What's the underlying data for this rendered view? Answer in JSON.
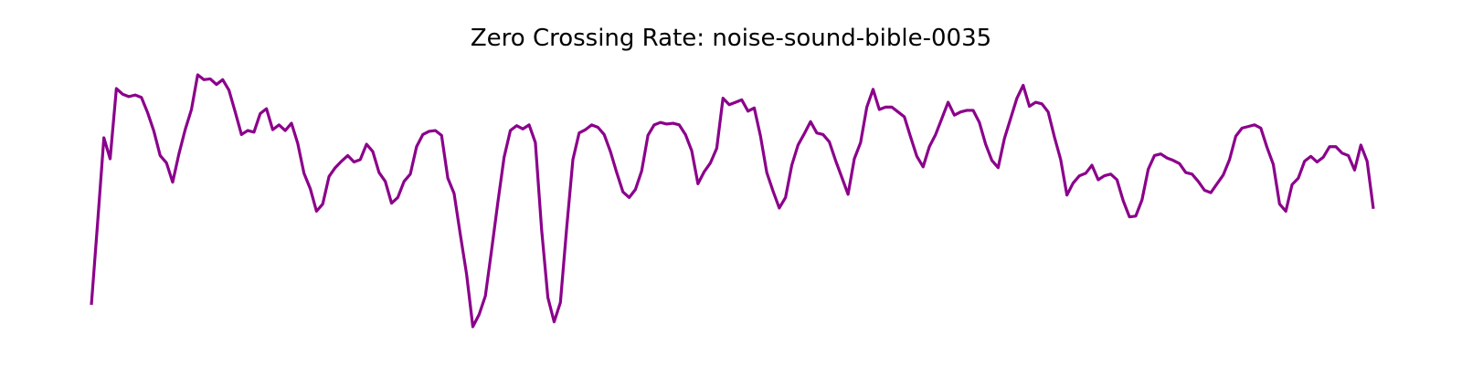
{
  "chart_data": {
    "type": "line",
    "title": "Zero Crossing Rate: noise-sound-bible-0035",
    "xlabel": "",
    "ylabel": "",
    "axes_visible": false,
    "grid": false,
    "line_color": "#8B008B",
    "series": [
      {
        "values": [
          0.027,
          0.129,
          0.234,
          0.208,
          0.295,
          0.288,
          0.285,
          0.287,
          0.284,
          0.265,
          0.242,
          0.212,
          0.203,
          0.179,
          0.214,
          0.244,
          0.269,
          0.312,
          0.306,
          0.307,
          0.3,
          0.306,
          0.293,
          0.266,
          0.238,
          0.243,
          0.241,
          0.264,
          0.27,
          0.244,
          0.25,
          0.243,
          0.252,
          0.227,
          0.19,
          0.171,
          0.143,
          0.152,
          0.186,
          0.197,
          0.205,
          0.212,
          0.204,
          0.207,
          0.226,
          0.217,
          0.191,
          0.18,
          0.153,
          0.16,
          0.18,
          0.189,
          0.223,
          0.238,
          0.242,
          0.243,
          0.237,
          0.184,
          0.165,
          0.114,
          0.065,
          0.0,
          0.015,
          0.038,
          0.095,
          0.154,
          0.21,
          0.243,
          0.249,
          0.245,
          0.25,
          0.228,
          0.12,
          0.036,
          0.006,
          0.03,
          0.122,
          0.207,
          0.24,
          0.244,
          0.25,
          0.247,
          0.238,
          0.217,
          0.191,
          0.167,
          0.16,
          0.17,
          0.193,
          0.237,
          0.25,
          0.253,
          0.251,
          0.252,
          0.25,
          0.238,
          0.218,
          0.177,
          0.192,
          0.203,
          0.221,
          0.283,
          0.275,
          0.278,
          0.281,
          0.267,
          0.271,
          0.236,
          0.191,
          0.168,
          0.147,
          0.16,
          0.2,
          0.225,
          0.239,
          0.254,
          0.24,
          0.238,
          0.229,
          0.206,
          0.185,
          0.164,
          0.208,
          0.228,
          0.272,
          0.294,
          0.269,
          0.272,
          0.272,
          0.266,
          0.26,
          0.235,
          0.211,
          0.198,
          0.223,
          0.238,
          0.258,
          0.278,
          0.262,
          0.266,
          0.268,
          0.268,
          0.253,
          0.226,
          0.206,
          0.197,
          0.233,
          0.258,
          0.283,
          0.299,
          0.273,
          0.278,
          0.276,
          0.266,
          0.235,
          0.207,
          0.163,
          0.178,
          0.187,
          0.19,
          0.2,
          0.182,
          0.187,
          0.189,
          0.182,
          0.156,
          0.136,
          0.137,
          0.157,
          0.195,
          0.212,
          0.214,
          0.209,
          0.206,
          0.202,
          0.191,
          0.189,
          0.18,
          0.169,
          0.166,
          0.177,
          0.188,
          0.207,
          0.236,
          0.246,
          0.248,
          0.25,
          0.246,
          0.222,
          0.201,
          0.152,
          0.143,
          0.176,
          0.184,
          0.205,
          0.211,
          0.204,
          0.21,
          0.223,
          0.223,
          0.215,
          0.212,
          0.194,
          0.225,
          0.205,
          0.146
        ]
      }
    ]
  }
}
